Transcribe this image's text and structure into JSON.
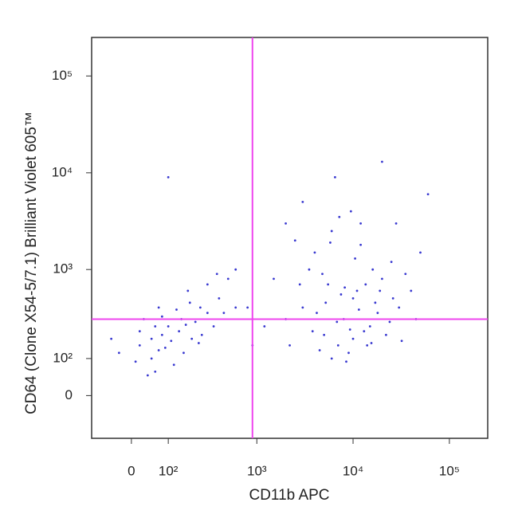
{
  "chart_data": {
    "type": "scatter",
    "xlabel": "CD11b APC",
    "ylabel": "CD64 (Clone X54-5/7.1) Brilliant Violet 605™",
    "xscale": "asinh",
    "yscale": "asinh",
    "xlim": [
      -110,
      250000
    ],
    "ylim": [
      -120,
      250000
    ],
    "xticks": [
      0,
      {
        "value": 100,
        "label": "10²"
      },
      {
        "value": 1000,
        "label": "10³"
      },
      {
        "value": 10000,
        "label": "10⁴"
      },
      {
        "value": 100000,
        "label": "10⁵"
      }
    ],
    "yticks": [
      0,
      {
        "value": 100,
        "label": "10²"
      },
      {
        "value": 1000,
        "label": "10³"
      },
      {
        "value": 10000,
        "label": "10⁴"
      },
      {
        "value": 100000,
        "label": "10⁵"
      }
    ],
    "xgate": 900,
    "ygate": 300,
    "gate_color": "#ee44ee",
    "series": [
      {
        "color": "#3838d0",
        "x": [
          20,
          50,
          80,
          -30,
          100,
          150,
          200,
          60,
          30,
          120,
          250,
          300,
          400,
          180,
          90,
          10,
          -50,
          70,
          140,
          220,
          350,
          500,
          60,
          40,
          110,
          160,
          260,
          80,
          190,
          300,
          450,
          70,
          130,
          20,
          240,
          170,
          100,
          600,
          380,
          50,
          3000,
          5000,
          8000,
          10000,
          15000,
          20000,
          4000,
          6000,
          12000,
          25000,
          30000,
          2000,
          7000,
          9000,
          11000,
          16000,
          5500,
          3500,
          18000,
          22000,
          40000,
          50000,
          2500,
          3000,
          6500,
          20000,
          9500,
          14000,
          8500,
          4500,
          6000,
          10000,
          13000,
          17000,
          7500,
          12000,
          28000,
          35000,
          45000,
          2200,
          2800,
          4200,
          5200,
          6800,
          8200,
          9300,
          11500,
          15500,
          19000,
          24000,
          32000,
          3800,
          4800,
          5800,
          7200,
          10500,
          13500,
          26000,
          2000,
          60000,
          800,
          600,
          1200,
          1500,
          900
        ],
        "y": [
          150,
          100,
          200,
          120,
          250,
          300,
          180,
          60,
          300,
          80,
          400,
          350,
          500,
          600,
          140,
          90,
          180,
          400,
          220,
          280,
          250,
          800,
          250,
          50,
          170,
          120,
          200,
          320,
          450,
          700,
          350,
          130,
          380,
          220,
          160,
          260,
          9000,
          400,
          900,
          180,
          400,
          200,
          300,
          500,
          250,
          800,
          1500,
          2500,
          3000,
          1200,
          400,
          300,
          150,
          120,
          600,
          1000,
          700,
          1000,
          350,
          200,
          600,
          1500,
          2000,
          5000,
          9000,
          13000,
          4000,
          150,
          90,
          130,
          100,
          180,
          220,
          450,
          550,
          1800,
          3000,
          900,
          300,
          150,
          700,
          350,
          450,
          280,
          650,
          230,
          380,
          160,
          600,
          280,
          170,
          220,
          900,
          1900,
          3500,
          1300,
          700,
          500,
          3000,
          6000,
          400,
          1000,
          250,
          800,
          150
        ]
      }
    ]
  }
}
